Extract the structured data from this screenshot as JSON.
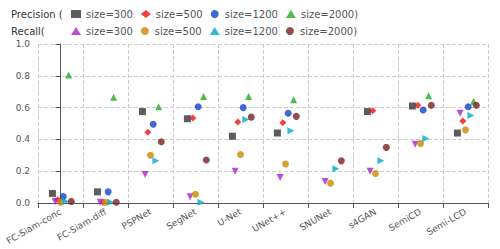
{
  "chart_data": {
    "type": "scatter",
    "categories": [
      "FC-Siam-conc",
      "FC-Siam-diff",
      "PSPNet",
      "SegNet",
      "U-Net",
      "UNet++",
      "SNUNet",
      "s4GAN",
      "SemiCD",
      "Semi-LCD"
    ],
    "ylim": [
      0.0,
      1.0
    ],
    "yticks": [
      {
        "value": 0.0,
        "label": "0.0"
      },
      {
        "value": 0.2,
        "label": "0.2"
      },
      {
        "value": 0.4,
        "label": "0.4"
      },
      {
        "value": 0.6,
        "label": "0.6"
      },
      {
        "value": 0.8,
        "label": "0.8"
      },
      {
        "value": 1.0,
        "label": "1.0"
      }
    ],
    "grid": true,
    "legend": "upper left",
    "series_groups": [
      {
        "title": "Precision (",
        "series": [
          {
            "name": "size=300",
            "color": "#333333",
            "marker": "square",
            "values": [
              0.06,
              0.07,
              0.575,
              0.53,
              0.42,
              0.44,
              null,
              0.575,
              0.61,
              0.44
            ]
          },
          {
            "name": "size=500",
            "color": "#ee1111",
            "marker": "diamond",
            "values": [
              0.02,
              0.005,
              0.445,
              0.535,
              0.51,
              0.505,
              null,
              0.58,
              0.615,
              0.515
            ]
          },
          {
            "name": "size=1200",
            "color": "#1144cc",
            "marker": "circle",
            "values": [
              0.04,
              0.07,
              0.495,
              0.605,
              0.6,
              0.565,
              null,
              null,
              0.585,
              0.605
            ]
          },
          {
            "name": "size=2000)",
            "color": "#22aa22",
            "marker": "triangle-up",
            "values": [
              0.805,
              0.665,
              0.605,
              0.67,
              0.67,
              0.65,
              null,
              null,
              0.675,
              0.64
            ]
          }
        ]
      },
      {
        "title": "Recall(",
        "series": [
          {
            "name": "size=300",
            "color": "#aa22cc",
            "marker": "triangle-down",
            "values": [
              0.01,
              0.005,
              0.18,
              0.04,
              0.2,
              0.16,
              0.135,
              0.2,
              0.37,
              0.565
            ]
          },
          {
            "name": "size=500",
            "color": "#cc8800",
            "marker": "circle",
            "values": [
              0.005,
              0.005,
              0.3,
              0.055,
              0.305,
              0.245,
              0.125,
              0.185,
              0.375,
              0.46
            ]
          },
          {
            "name": "size=1200",
            "color": "#00aacc",
            "marker": "triangle-right",
            "values": [
              0.01,
              0.005,
              0.265,
              0.005,
              0.525,
              0.455,
              0.215,
              0.265,
              0.405,
              0.55
            ]
          },
          {
            "name": "size=2000)",
            "color": "#772222",
            "marker": "circle",
            "values": [
              0.01,
              0.005,
              0.385,
              0.27,
              0.54,
              0.545,
              0.265,
              0.35,
              0.615,
              0.615
            ]
          }
        ]
      }
    ]
  }
}
